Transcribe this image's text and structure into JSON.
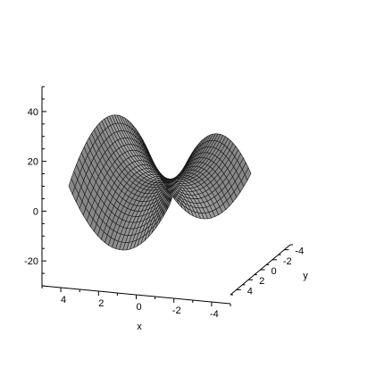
{
  "chart_data": {
    "type": "surface",
    "function": "x^2 - y^2 + 25",
    "title": "",
    "x_range": [
      -5,
      5
    ],
    "y_range": [
      -5,
      5
    ],
    "z_ticks": [
      -20,
      0,
      20,
      40
    ],
    "x_ticks": [
      4,
      2,
      0,
      -2,
      -4
    ],
    "y_ticks": [
      -4,
      -2,
      0,
      2,
      4
    ],
    "z_range": [
      -30,
      50
    ],
    "xlabel": "x",
    "ylabel": "y",
    "zlabel": "",
    "grid_u": 28,
    "grid_v": 32,
    "colors": {
      "surface_fill": "#d6d6d6",
      "surface_shadow": "#8c8c8c",
      "mesh_line": "#1a1a1a",
      "axis": "#000000",
      "background": "#ffffff"
    }
  }
}
